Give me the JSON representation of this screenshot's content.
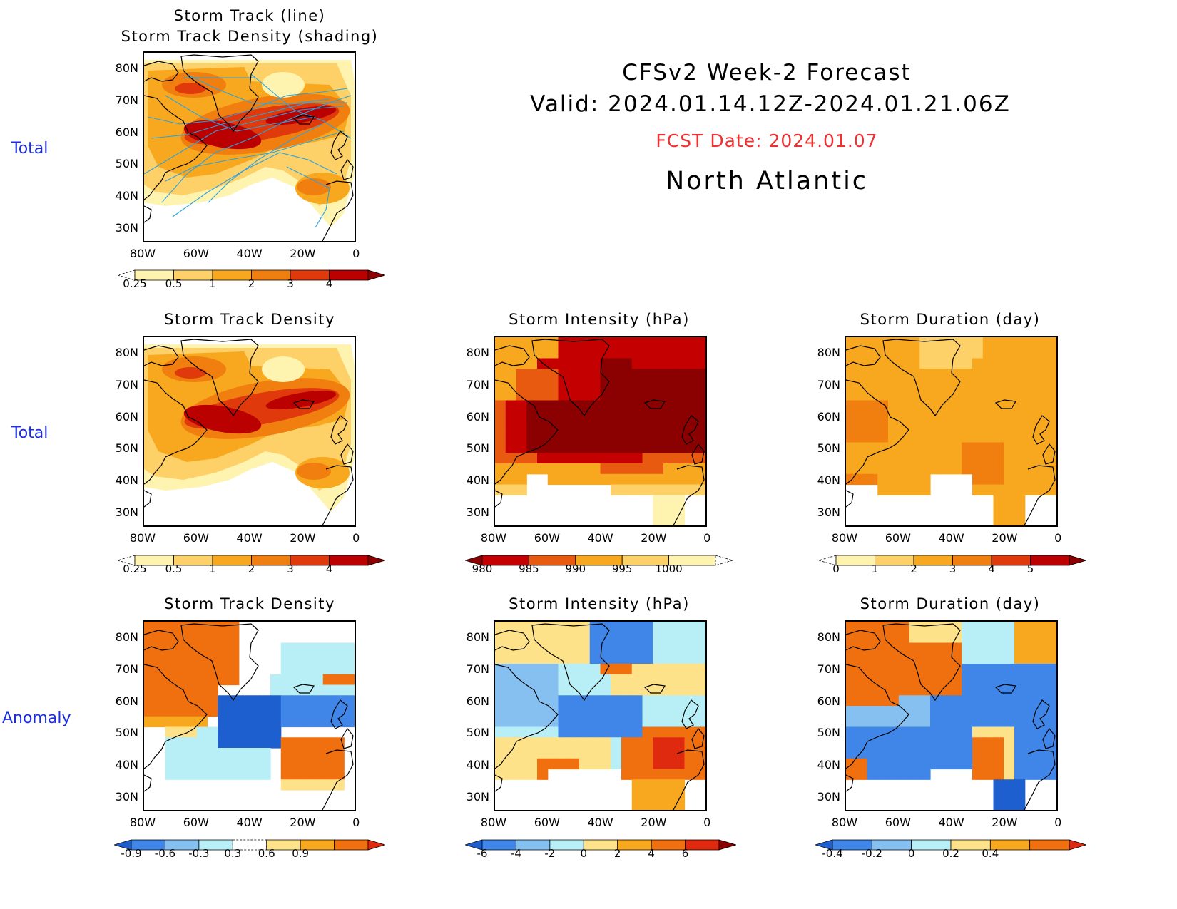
{
  "header": {
    "title": "CFSv2 Week-2 Forecast",
    "valid": "Valid: 2024.01.14.12Z-2024.01.21.06Z",
    "fcst_date": "FCST Date: 2024.01.07",
    "region": "North Atlantic"
  },
  "row_labels": [
    "Total",
    "Total",
    "Anomaly"
  ],
  "panels": {
    "p1": {
      "title1": "Storm Track (line)",
      "title2": "Storm Track Density (shading)"
    },
    "p2": {
      "title": "Storm Track Density"
    },
    "p3": {
      "title": "Storm Intensity (hPa)"
    },
    "p4": {
      "title": "Storm Duration (day)"
    },
    "p5": {
      "title": "Storm Track Density"
    },
    "p6": {
      "title": "Storm Intensity (hPa)"
    },
    "p7": {
      "title": "Storm Duration (day)"
    }
  },
  "axes": {
    "lat_ticks": [
      "80N",
      "70N",
      "60N",
      "50N",
      "40N",
      "30N"
    ],
    "lon_ticks": [
      "80W",
      "60W",
      "40W",
      "20W",
      "0"
    ]
  },
  "colorbars": {
    "density": {
      "labels": [
        "0.25",
        "0.5",
        "1",
        "2",
        "3",
        "4"
      ],
      "colors": [
        "#ffffff",
        "#fff3b0",
        "#fdd068",
        "#f8a81e",
        "#f07f10",
        "#e03a0c",
        "#bb0000",
        "#8b0000"
      ]
    },
    "intensity": {
      "labels": [
        "980",
        "985",
        "990",
        "995",
        "1000"
      ],
      "colors": [
        "#8b0000",
        "#c40000",
        "#e85a10",
        "#f8a81e",
        "#fdd068",
        "#fff3b0",
        "#ffffff"
      ]
    },
    "duration": {
      "labels": [
        "0",
        "1",
        "2",
        "3",
        "4",
        "5"
      ],
      "colors": [
        "#ffffff",
        "#fff3b0",
        "#fdd068",
        "#f8a81e",
        "#f07f10",
        "#e03a0c",
        "#bb0000",
        "#8b0000"
      ]
    },
    "anom_density": {
      "labels": [
        "-0.9",
        "-0.6",
        "-0.3",
        "0.3",
        "0.6",
        "0.9"
      ],
      "colors": [
        "#1e5fd0",
        "#3f86e8",
        "#86c0f0",
        "#b8eef5",
        "#ffffff",
        "#fde28a",
        "#f8a81e",
        "#f07010",
        "#e02a10"
      ]
    },
    "anom_intensity": {
      "labels": [
        "-6",
        "-4",
        "-2",
        "0",
        "2",
        "4",
        "6"
      ],
      "colors": [
        "#1e5fd0",
        "#3f86e8",
        "#86c0f0",
        "#b8eef5",
        "#fde28a",
        "#f8a81e",
        "#f07010",
        "#e02a10",
        "#8b0000"
      ]
    },
    "anom_duration": {
      "labels": [
        "-0.4",
        "-0.2",
        "0",
        "0.2",
        "0.4"
      ],
      "colors": [
        "#1e5fd0",
        "#3f86e8",
        "#86c0f0",
        "#b8eef5",
        "#fde28a",
        "#f8a81e",
        "#f07010",
        "#e02a10"
      ]
    }
  },
  "colors": {
    "row_label": "#1a2ee0",
    "fcst_date": "#f03030",
    "track_line": "#2aa3e0"
  }
}
